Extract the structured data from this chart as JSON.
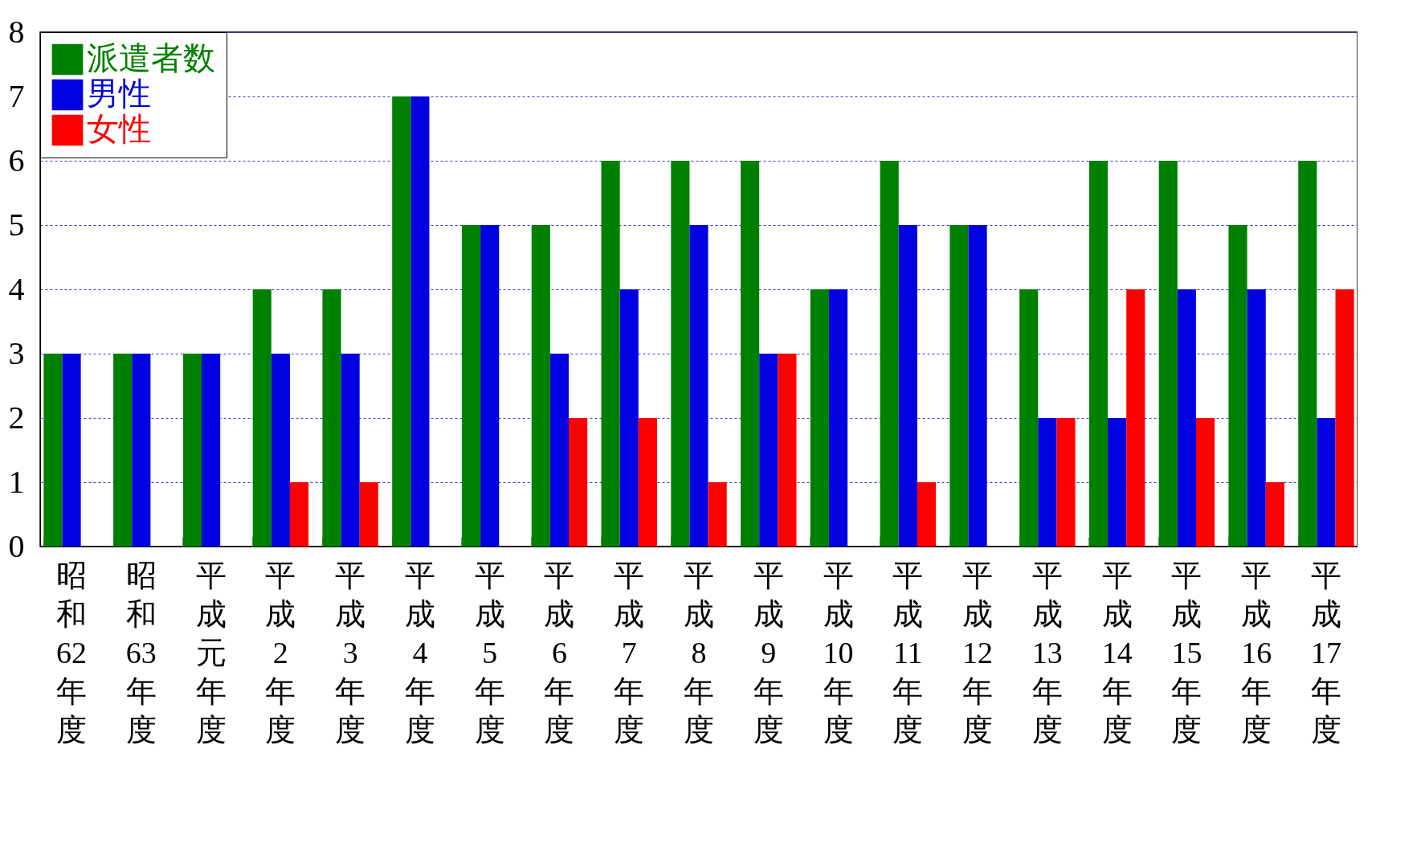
{
  "chart_data": {
    "type": "bar",
    "categories": [
      "昭和62年度",
      "昭和63年度",
      "平成元年度",
      "平成2年度",
      "平成3年度",
      "平成4年度",
      "平成5年度",
      "平成6年度",
      "平成7年度",
      "平成8年度",
      "平成9年度",
      "平成10年度",
      "平成11年度",
      "平成12年度",
      "平成13年度",
      "平成14年度",
      "平成15年度",
      "平成16年度",
      "平成17年度"
    ],
    "series": [
      {
        "name": "派遣者数",
        "color": "#008000",
        "values": [
          3,
          3,
          3,
          4,
          4,
          7,
          5,
          5,
          6,
          6,
          6,
          4,
          6,
          5,
          4,
          6,
          6,
          5,
          6
        ]
      },
      {
        "name": "男性",
        "color": "#0000e0",
        "values": [
          3,
          3,
          3,
          3,
          3,
          7,
          5,
          3,
          4,
          5,
          3,
          4,
          5,
          5,
          2,
          2,
          4,
          4,
          2
        ]
      },
      {
        "name": "女性",
        "color": "#ff0000",
        "values": [
          0,
          0,
          0,
          1,
          1,
          0,
          0,
          2,
          2,
          1,
          3,
          0,
          1,
          0,
          2,
          4,
          2,
          1,
          4
        ]
      }
    ],
    "ylim": [
      0,
      8
    ],
    "yticks": [
      0,
      1,
      2,
      3,
      4,
      5,
      6,
      7,
      8
    ],
    "grid": "y",
    "legend": "top left"
  }
}
